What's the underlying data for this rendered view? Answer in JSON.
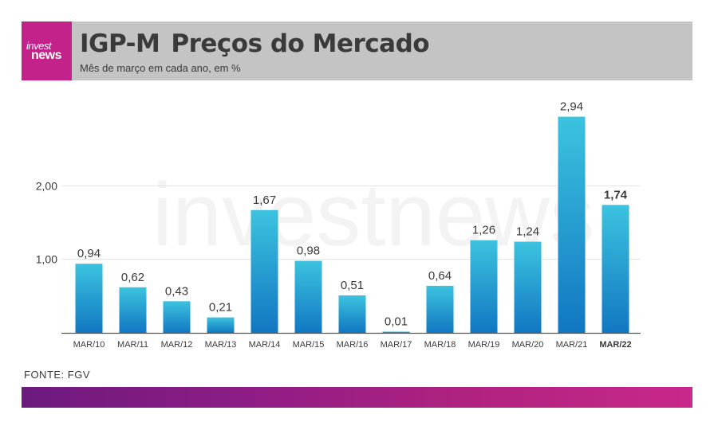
{
  "header": {
    "logo_line1": "invest",
    "logo_line2": "news",
    "title_part1": "IGP-M",
    "title_part2": "Preços do Mercado",
    "subtitle": "Mês de março em cada ano, em %"
  },
  "watermark": "investnews",
  "source": "FONTE: FGV",
  "colors": {
    "brand": "#c2228a",
    "header_bg": "#c4c4c4",
    "bar_top": "#3cc3df",
    "bar_bottom": "#1177c2",
    "text": "#3a3a3a"
  },
  "chart_data": {
    "type": "bar",
    "title": "",
    "xlabel": "",
    "ylabel": "",
    "categories": [
      "MAR/10",
      "MAR/11",
      "MAR/12",
      "MAR/13",
      "MAR/14",
      "MAR/15",
      "MAR/16",
      "MAR/17",
      "MAR/18",
      "MAR/19",
      "MAR/20",
      "MAR/21",
      "MAR/22"
    ],
    "values": [
      0.94,
      0.62,
      0.43,
      0.21,
      1.67,
      0.98,
      0.51,
      0.01,
      0.64,
      1.26,
      1.24,
      2.94,
      1.74
    ],
    "value_labels": [
      "0,94",
      "0,62",
      "0,43",
      "0,21",
      "1,67",
      "0,98",
      "0,51",
      "0,01",
      "0,64",
      "1,26",
      "1,24",
      "2,94",
      "1,74"
    ],
    "highlight_category": "MAR/22",
    "yticks": [
      1.0,
      2.0
    ],
    "ytick_labels": [
      "1,00",
      "2,00"
    ],
    "ylim": [
      0,
      3.0
    ],
    "grid": true,
    "legend": false
  }
}
